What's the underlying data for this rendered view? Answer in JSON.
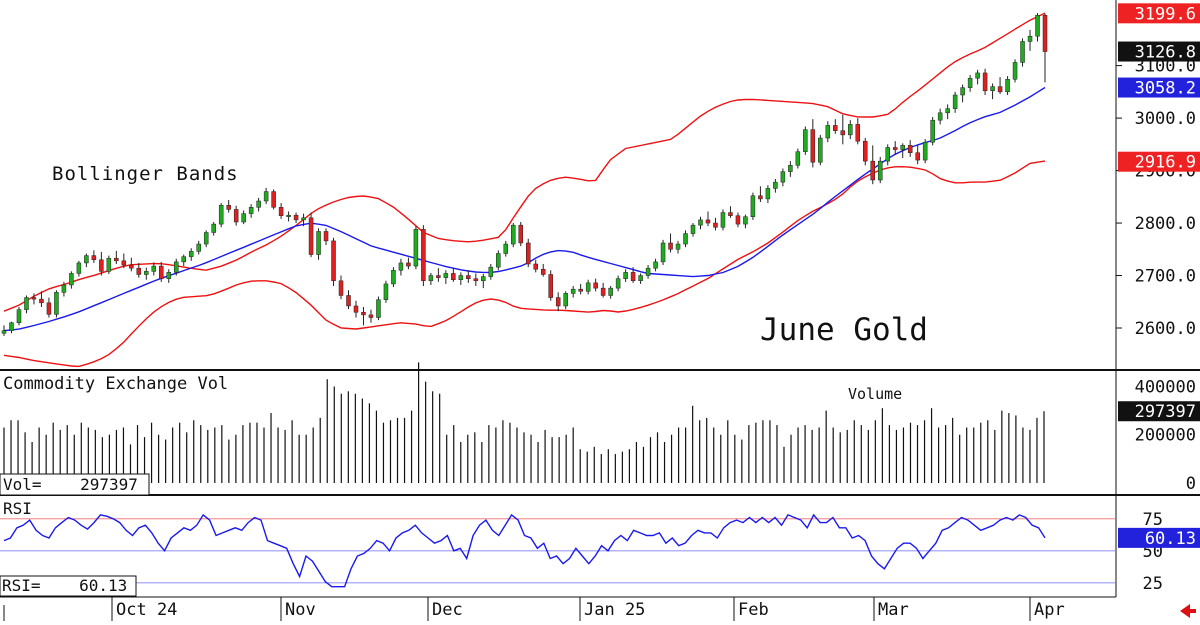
{
  "chart_data": {
    "type": "candlestick",
    "title": "June Gold",
    "annotation": "Bollinger Bands",
    "price_panel": {
      "ylim": [
        2520,
        3225
      ],
      "ticks": [
        {
          "value": 2600,
          "label": "2600.0"
        },
        {
          "value": 2700,
          "label": "2700.0"
        },
        {
          "value": 2800,
          "label": "2800.0"
        },
        {
          "value": 2900,
          "label": "2900.0"
        },
        {
          "value": 3000,
          "label": "3000.0"
        },
        {
          "value": 3100,
          "label": "3100.0"
        }
      ],
      "markers": [
        {
          "value": 3199.6,
          "label": "3199.6",
          "color": "#ee2222",
          "text_color": "#ffffff"
        },
        {
          "value": 3126.8,
          "label": "3126.8",
          "color": "#111111",
          "text_color": "#ffffff"
        },
        {
          "value": 3058.2,
          "label": "3058.2",
          "color": "#2222dd",
          "text_color": "#ffffff"
        },
        {
          "value": 2916.9,
          "label": "2916.9",
          "color": "#ee2222",
          "text_color": "#ffffff"
        }
      ],
      "upper_band_color": "#ee1111",
      "lower_band_color": "#ee1111",
      "middle_band_color": "#1a1aee",
      "up_candle_color": "#1faa1f",
      "down_candle_color": "#dd2020"
    },
    "candles": [
      [
        2590,
        2605,
        2585,
        2595
      ],
      [
        2595,
        2612,
        2590,
        2610
      ],
      [
        2610,
        2640,
        2605,
        2635
      ],
      [
        2635,
        2662,
        2628,
        2658
      ],
      [
        2658,
        2666,
        2645,
        2655
      ],
      [
        2655,
        2670,
        2640,
        2648
      ],
      [
        2648,
        2658,
        2620,
        2626
      ],
      [
        2626,
        2672,
        2620,
        2668
      ],
      [
        2668,
        2688,
        2660,
        2682
      ],
      [
        2682,
        2708,
        2675,
        2704
      ],
      [
        2704,
        2728,
        2698,
        2724
      ],
      [
        2724,
        2742,
        2716,
        2738
      ],
      [
        2738,
        2748,
        2724,
        2730
      ],
      [
        2730,
        2745,
        2700,
        2708
      ],
      [
        2708,
        2738,
        2703,
        2733
      ],
      [
        2733,
        2747,
        2722,
        2728
      ],
      [
        2728,
        2742,
        2714,
        2720
      ],
      [
        2720,
        2734,
        2708,
        2714
      ],
      [
        2714,
        2724,
        2696,
        2702
      ],
      [
        2702,
        2715,
        2692,
        2708
      ],
      [
        2708,
        2725,
        2700,
        2718
      ],
      [
        2718,
        2726,
        2688,
        2694
      ],
      [
        2694,
        2712,
        2686,
        2706
      ],
      [
        2706,
        2732,
        2700,
        2726
      ],
      [
        2726,
        2740,
        2718,
        2736
      ],
      [
        2736,
        2752,
        2728,
        2746
      ],
      [
        2746,
        2766,
        2740,
        2760
      ],
      [
        2760,
        2786,
        2754,
        2782
      ],
      [
        2782,
        2802,
        2776,
        2798
      ],
      [
        2798,
        2838,
        2792,
        2834
      ],
      [
        2834,
        2844,
        2820,
        2826
      ],
      [
        2826,
        2833,
        2795,
        2802
      ],
      [
        2802,
        2824,
        2798,
        2818
      ],
      [
        2818,
        2836,
        2810,
        2830
      ],
      [
        2830,
        2848,
        2822,
        2842
      ],
      [
        2842,
        2867,
        2836,
        2860
      ],
      [
        2860,
        2864,
        2826,
        2830
      ],
      [
        2830,
        2838,
        2808,
        2814
      ],
      [
        2814,
        2822,
        2803,
        2815
      ],
      [
        2815,
        2820,
        2800,
        2806
      ],
      [
        2806,
        2818,
        2794,
        2810
      ],
      [
        2810,
        2820,
        2735,
        2740
      ],
      [
        2740,
        2790,
        2730,
        2784
      ],
      [
        2784,
        2790,
        2758,
        2766
      ],
      [
        2766,
        2772,
        2680,
        2690
      ],
      [
        2690,
        2700,
        2655,
        2662
      ],
      [
        2662,
        2672,
        2636,
        2642
      ],
      [
        2642,
        2652,
        2620,
        2630
      ],
      [
        2630,
        2640,
        2605,
        2625
      ],
      [
        2625,
        2635,
        2610,
        2620
      ],
      [
        2620,
        2660,
        2615,
        2654
      ],
      [
        2654,
        2690,
        2648,
        2684
      ],
      [
        2684,
        2716,
        2678,
        2710
      ],
      [
        2710,
        2732,
        2700,
        2724
      ],
      [
        2724,
        2734,
        2712,
        2718
      ],
      [
        2718,
        2794,
        2712,
        2788
      ],
      [
        2788,
        2796,
        2680,
        2690
      ],
      [
        2690,
        2705,
        2682,
        2700
      ],
      [
        2700,
        2714,
        2688,
        2696
      ],
      [
        2696,
        2710,
        2684,
        2704
      ],
      [
        2704,
        2714,
        2688,
        2692
      ],
      [
        2692,
        2706,
        2682,
        2700
      ],
      [
        2700,
        2710,
        2686,
        2694
      ],
      [
        2694,
        2704,
        2680,
        2690
      ],
      [
        2690,
        2703,
        2676,
        2698
      ],
      [
        2698,
        2722,
        2692,
        2716
      ],
      [
        2716,
        2748,
        2710,
        2742
      ],
      [
        2742,
        2766,
        2736,
        2760
      ],
      [
        2760,
        2800,
        2754,
        2796
      ],
      [
        2796,
        2802,
        2756,
        2762
      ],
      [
        2762,
        2770,
        2716,
        2722
      ],
      [
        2722,
        2730,
        2706,
        2712
      ],
      [
        2712,
        2722,
        2698,
        2702
      ],
      [
        2702,
        2710,
        2652,
        2658
      ],
      [
        2658,
        2668,
        2632,
        2642
      ],
      [
        2642,
        2670,
        2636,
        2666
      ],
      [
        2666,
        2680,
        2658,
        2674
      ],
      [
        2674,
        2684,
        2664,
        2670
      ],
      [
        2670,
        2692,
        2664,
        2686
      ],
      [
        2686,
        2694,
        2670,
        2676
      ],
      [
        2676,
        2686,
        2658,
        2662
      ],
      [
        2662,
        2680,
        2656,
        2676
      ],
      [
        2676,
        2700,
        2670,
        2694
      ],
      [
        2694,
        2712,
        2688,
        2706
      ],
      [
        2706,
        2716,
        2686,
        2690
      ],
      [
        2690,
        2704,
        2684,
        2700
      ],
      [
        2700,
        2720,
        2694,
        2714
      ],
      [
        2714,
        2732,
        2708,
        2726
      ],
      [
        2726,
        2768,
        2720,
        2762
      ],
      [
        2762,
        2780,
        2744,
        2750
      ],
      [
        2750,
        2766,
        2742,
        2760
      ],
      [
        2760,
        2786,
        2754,
        2780
      ],
      [
        2780,
        2800,
        2774,
        2796
      ],
      [
        2796,
        2812,
        2788,
        2806
      ],
      [
        2806,
        2822,
        2794,
        2800
      ],
      [
        2800,
        2810,
        2786,
        2792
      ],
      [
        2792,
        2826,
        2786,
        2820
      ],
      [
        2820,
        2832,
        2810,
        2814
      ],
      [
        2814,
        2820,
        2792,
        2798
      ],
      [
        2798,
        2816,
        2790,
        2812
      ],
      [
        2812,
        2858,
        2806,
        2852
      ],
      [
        2852,
        2870,
        2840,
        2846
      ],
      [
        2846,
        2872,
        2838,
        2866
      ],
      [
        2866,
        2884,
        2858,
        2878
      ],
      [
        2878,
        2904,
        2870,
        2898
      ],
      [
        2898,
        2918,
        2888,
        2910
      ],
      [
        2910,
        2942,
        2904,
        2936
      ],
      [
        2936,
        2984,
        2930,
        2978
      ],
      [
        2978,
        2998,
        2906,
        2916
      ],
      [
        2916,
        2968,
        2910,
        2962
      ],
      [
        2962,
        2994,
        2954,
        2986
      ],
      [
        2986,
        2998,
        2970,
        2976
      ],
      [
        2976,
        3006,
        2950,
        2968
      ],
      [
        2968,
        2996,
        2960,
        2988
      ],
      [
        2988,
        3000,
        2950,
        2956
      ],
      [
        2956,
        2962,
        2910,
        2918
      ],
      [
        2918,
        2948,
        2874,
        2882
      ],
      [
        2882,
        2926,
        2876,
        2918
      ],
      [
        2918,
        2950,
        2910,
        2944
      ],
      [
        2944,
        2956,
        2930,
        2940
      ],
      [
        2940,
        2952,
        2924,
        2948
      ],
      [
        2948,
        2958,
        2926,
        2934
      ],
      [
        2934,
        2948,
        2912,
        2920
      ],
      [
        2920,
        2960,
        2914,
        2954
      ],
      [
        2954,
        3002,
        2948,
        2996
      ],
      [
        2996,
        3018,
        2988,
        3010
      ],
      [
        3010,
        3026,
        2998,
        3018
      ],
      [
        3018,
        3050,
        3010,
        3044
      ],
      [
        3044,
        3064,
        3030,
        3058
      ],
      [
        3058,
        3082,
        3050,
        3076
      ],
      [
        3076,
        3092,
        3064,
        3086
      ],
      [
        3086,
        3094,
        3044,
        3052
      ],
      [
        3052,
        3066,
        3036,
        3060
      ],
      [
        3060,
        3078,
        3046,
        3050
      ],
      [
        3050,
        3080,
        3044,
        3074
      ],
      [
        3074,
        3112,
        3068,
        3106
      ],
      [
        3106,
        3152,
        3098,
        3146
      ],
      [
        3146,
        3168,
        3128,
        3156
      ],
      [
        3156,
        3200,
        3146,
        3196
      ],
      [
        3196,
        3199.6,
        3068,
        3126.8
      ]
    ],
    "upper_band": [
      2632,
      2644,
      2662,
      2676,
      2684,
      2694,
      2702,
      2712,
      2720,
      2722,
      2723,
      2719,
      2714,
      2710,
      2718,
      2730,
      2746,
      2760,
      2778,
      2800,
      2824,
      2838,
      2848,
      2852,
      2848,
      2832,
      2808,
      2782,
      2770,
      2766,
      2764,
      2768,
      2774,
      2820,
      2862,
      2880,
      2888,
      2884,
      2878,
      2920,
      2942,
      2948,
      2954,
      2960,
      2984,
      3008,
      3024,
      3034,
      3036,
      3034,
      3032,
      3030,
      3028,
      3022,
      3008,
      3002,
      3002,
      3008,
      3034,
      3056,
      3080,
      3104,
      3120,
      3132,
      3150,
      3168,
      3186,
      3200
    ],
    "lower_band": [
      2548,
      2544,
      2538,
      2534,
      2530,
      2526,
      2534,
      2546,
      2568,
      2598,
      2626,
      2646,
      2658,
      2660,
      2662,
      2672,
      2684,
      2690,
      2690,
      2684,
      2666,
      2642,
      2614,
      2600,
      2598,
      2602,
      2606,
      2610,
      2608,
      2602,
      2612,
      2628,
      2646,
      2656,
      2652,
      2638,
      2636,
      2634,
      2634,
      2632,
      2630,
      2634,
      2630,
      2636,
      2644,
      2654,
      2666,
      2680,
      2694,
      2712,
      2730,
      2744,
      2760,
      2780,
      2802,
      2820,
      2834,
      2850,
      2876,
      2892,
      2904,
      2908,
      2906,
      2900,
      2882,
      2876,
      2878,
      2878,
      2882,
      2896,
      2914,
      2918
    ],
    "middle_band": [
      2595,
      2598,
      2605,
      2613,
      2622,
      2632,
      2644,
      2656,
      2668,
      2680,
      2692,
      2702,
      2712,
      2722,
      2734,
      2746,
      2758,
      2770,
      2782,
      2794,
      2800,
      2796,
      2784,
      2770,
      2756,
      2748,
      2740,
      2732,
      2724,
      2716,
      2710,
      2706,
      2706,
      2712,
      2720,
      2738,
      2748,
      2746,
      2736,
      2728,
      2720,
      2712,
      2704,
      2702,
      2700,
      2698,
      2700,
      2706,
      2718,
      2736,
      2758,
      2780,
      2800,
      2820,
      2844,
      2866,
      2888,
      2908,
      2928,
      2942,
      2952,
      2960,
      2974,
      2990,
      3002,
      3010,
      3024,
      3040,
      3058.2
    ],
    "volume_panel": {
      "label": "Commodity Exchange Vol",
      "title": "Volume",
      "readout": "Vol=    297397",
      "ylim": [
        0,
        460000
      ],
      "ticks": [
        {
          "value": 0,
          "label": "0"
        },
        {
          "value": 200000,
          "label": "200000"
        },
        {
          "value": 400000,
          "label": "400000"
        }
      ],
      "marker": {
        "value": 297397,
        "label": "297397"
      },
      "values": [
        230000,
        260000,
        260000,
        210000,
        170000,
        230000,
        200000,
        250000,
        220000,
        240000,
        200000,
        250000,
        230000,
        220000,
        190000,
        200000,
        220000,
        230000,
        160000,
        240000,
        190000,
        250000,
        200000,
        180000,
        230000,
        250000,
        210000,
        260000,
        240000,
        220000,
        230000,
        240000,
        180000,
        200000,
        240000,
        250000,
        250000,
        230000,
        290000,
        230000,
        220000,
        260000,
        200000,
        200000,
        230000,
        270000,
        430000,
        400000,
        370000,
        380000,
        370000,
        350000,
        330000,
        300000,
        250000,
        260000,
        270000,
        270000,
        300000,
        500000,
        420000,
        380000,
        370000,
        200000,
        240000,
        170000,
        200000,
        210000,
        170000,
        240000,
        230000,
        260000,
        250000,
        230000,
        210000,
        200000,
        170000,
        220000,
        190000,
        190000,
        200000,
        230000,
        140000,
        130000,
        150000,
        120000,
        140000,
        120000,
        130000,
        140000,
        170000,
        150000,
        190000,
        210000,
        170000,
        200000,
        230000,
        230000,
        320000,
        260000,
        270000,
        230000,
        200000,
        260000,
        200000,
        180000,
        240000,
        250000,
        260000,
        260000,
        240000,
        150000,
        200000,
        230000,
        240000,
        220000,
        230000,
        300000,
        230000,
        210000,
        220000,
        260000,
        240000,
        220000,
        260000,
        310000,
        240000,
        220000,
        230000,
        250000,
        240000,
        260000,
        310000,
        230000,
        240000,
        270000,
        200000,
        230000,
        230000,
        250000,
        260000,
        220000,
        300000,
        290000,
        280000,
        230000,
        220000,
        270000,
        297397
      ]
    },
    "rsi_panel": {
      "label": "RSI",
      "readout": "RSI=    60.13",
      "ylim": [
        14,
        92
      ],
      "ticks": [
        {
          "value": 25,
          "label": "25"
        },
        {
          "value": 50,
          "label": "50"
        },
        {
          "value": 75,
          "label": "75"
        }
      ],
      "reference_lines": [
        25,
        50,
        75
      ],
      "marker": {
        "value": 60.13,
        "label": "60.13"
      },
      "values": [
        58,
        60,
        68,
        70,
        74,
        66,
        62,
        60,
        68,
        72,
        76,
        74,
        70,
        67,
        72,
        78,
        77,
        75,
        72,
        66,
        62,
        68,
        70,
        64,
        56,
        50,
        60,
        64,
        68,
        66,
        70,
        78,
        74,
        62,
        64,
        66,
        68,
        66,
        72,
        76,
        74,
        58,
        56,
        54,
        52,
        40,
        30,
        46,
        42,
        34,
        26,
        22,
        22,
        22,
        36,
        46,
        48,
        52,
        58,
        56,
        50,
        60,
        64,
        66,
        70,
        64,
        60,
        56,
        58,
        62,
        50,
        52,
        44,
        62,
        70,
        74,
        66,
        62,
        70,
        78,
        74,
        62,
        60,
        52,
        56,
        44,
        46,
        40,
        44,
        52,
        46,
        40,
        46,
        54,
        50,
        58,
        62,
        58,
        66,
        64,
        62,
        62,
        64,
        56,
        60,
        54,
        56,
        62,
        66,
        64,
        64,
        60,
        68,
        72,
        74,
        72,
        76,
        72,
        76,
        72,
        76,
        70,
        78,
        76,
        74,
        68,
        78,
        72,
        72,
        76,
        68,
        68,
        60,
        62,
        58,
        46,
        40,
        36,
        44,
        52,
        56,
        56,
        52,
        44,
        50,
        56,
        66,
        68,
        72,
        76,
        74,
        70,
        66,
        68,
        70,
        74,
        76,
        74,
        78,
        76,
        70,
        68,
        60.13
      ]
    },
    "x_axis": {
      "labels": [
        "Oct 24",
        "Nov",
        "Dec",
        "Jan 25",
        "Feb",
        "Mar",
        "Apr"
      ]
    }
  }
}
